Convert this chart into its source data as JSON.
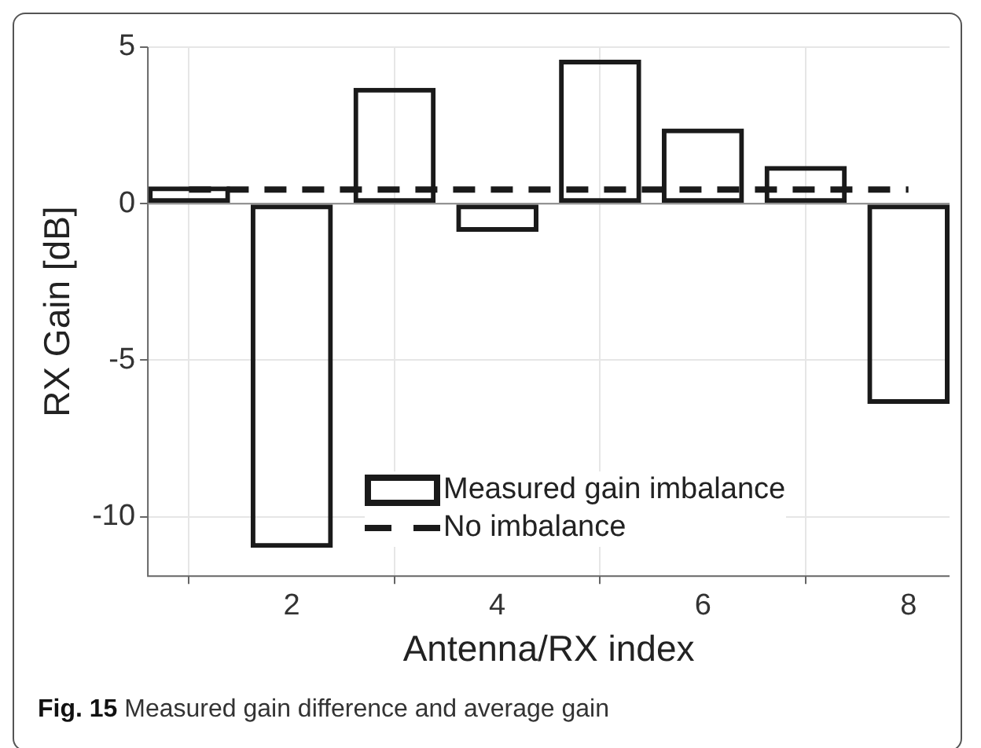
{
  "chart_data": {
    "type": "bar",
    "xlabel": "Antenna/RX index",
    "ylabel": "RX Gain [dB]",
    "x": [
      1,
      2,
      3,
      4,
      5,
      6,
      7,
      8
    ],
    "series": [
      {
        "name": "Measured gain imbalance",
        "color": "#1a1a1a",
        "values": [
          0.55,
          -11,
          3.7,
          -0.9,
          4.6,
          2.4,
          1.2,
          -6.4
        ]
      },
      {
        "name": "No imbalance",
        "type": "line",
        "line_style": "dashed",
        "color": "#1a1a1a",
        "x": [
          1,
          8
        ],
        "values": [
          0.45,
          0.45
        ]
      }
    ],
    "xlim": [
      0.6,
      8.4
    ],
    "xticks": [
      2,
      4,
      6,
      8
    ],
    "ylim": [
      -11.9,
      5
    ],
    "yticks": [
      -10,
      -5,
      0,
      5
    ],
    "grid": true,
    "legend": "bottom",
    "marker": "none",
    "annotations": [
      "Fig. 15 Measured gain difference and average gain"
    ]
  }
}
